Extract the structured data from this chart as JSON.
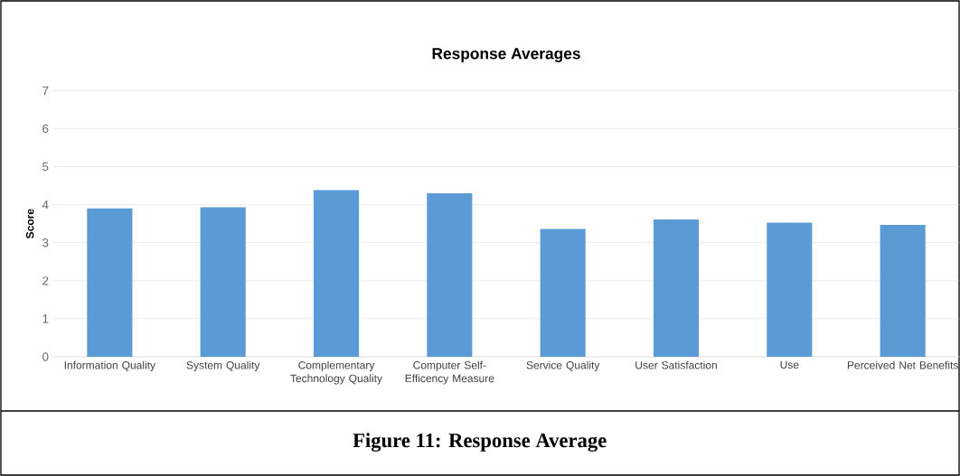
{
  "chart_data": {
    "type": "bar",
    "title": "Response Averages",
    "ylabel": "Score",
    "categories": [
      "Information Quality",
      "System Quality",
      "Complementary Technology Quality",
      "Computer Self-Efficency Measure",
      "Service Quality",
      "User Satisfaction",
      "Use",
      "Perceived Net Benefits"
    ],
    "values": [
      3.9,
      3.93,
      4.38,
      4.3,
      3.36,
      3.61,
      3.53,
      3.47
    ],
    "color": "#5b9bd5",
    "ylim": [
      0,
      7
    ],
    "yticks": [
      0,
      1,
      2,
      3,
      4,
      5,
      6,
      7
    ],
    "grid": "y",
    "annotations": [
      "**Figure 11: Response Average**"
    ]
  }
}
